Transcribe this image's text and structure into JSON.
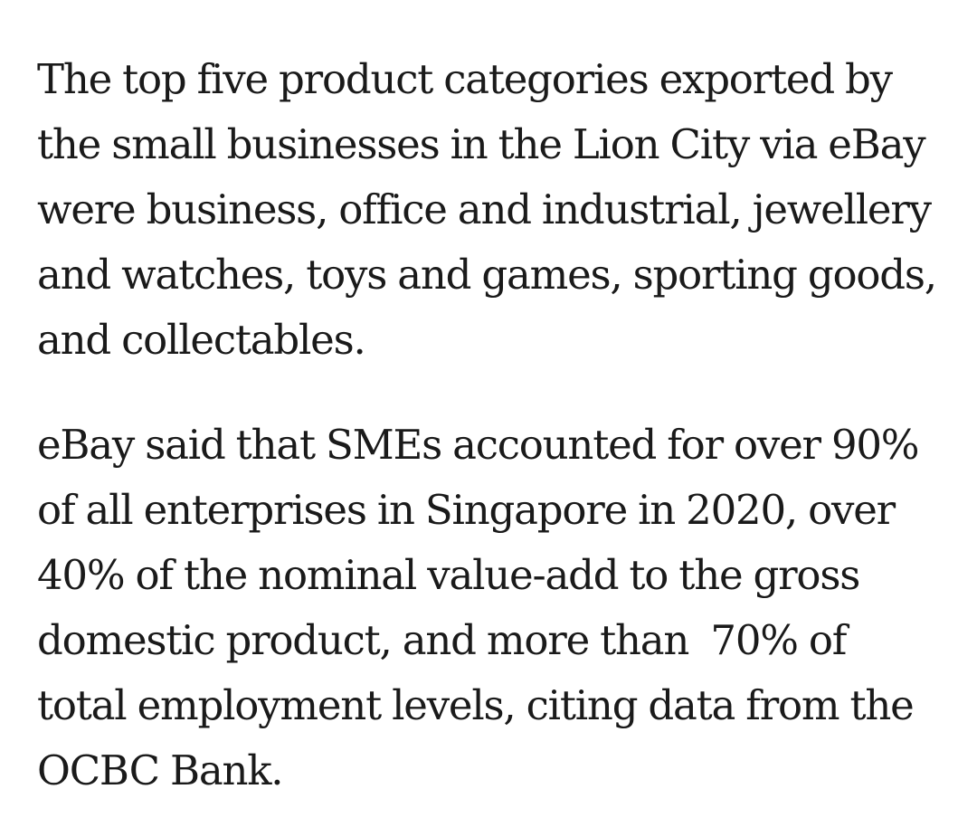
{
  "article": {
    "paragraphs": [
      {
        "lines": [
          "The top five product categories exported by",
          "the small businesses in the Lion City via eBay",
          "were business, office and industrial, jewellery",
          "and watches, toys and games, sporting goods,",
          "and collectables."
        ]
      },
      {
        "lines": [
          "eBay said that SMEs accounted for over 90%",
          "of all enterprises in Singapore in 2020, over",
          "40% of the nominal value-add to the gross",
          "domestic product, and more than  70% of",
          "total employment levels, citing data from the",
          "OCBC Bank."
        ]
      }
    ]
  }
}
